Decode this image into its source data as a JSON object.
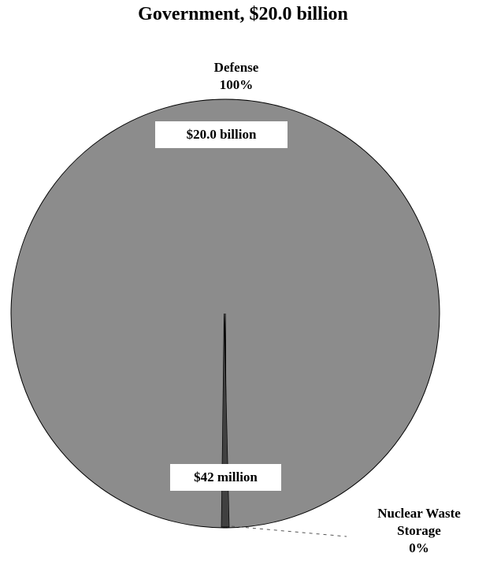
{
  "chart_data": {
    "type": "pie",
    "title": "Government, $20.0 billion",
    "slices": [
      {
        "name": "Defense",
        "percent_label": "100%",
        "value_label": "$20.0 billion",
        "value": 20000,
        "color": "#8c8c8c"
      },
      {
        "name": "Nuclear Waste Storage",
        "name_lines": [
          "Nuclear Waste",
          "Storage"
        ],
        "percent_label": "0%",
        "value_label": "$42 million",
        "value": 42,
        "color": "#404040"
      }
    ],
    "units": "million $"
  }
}
